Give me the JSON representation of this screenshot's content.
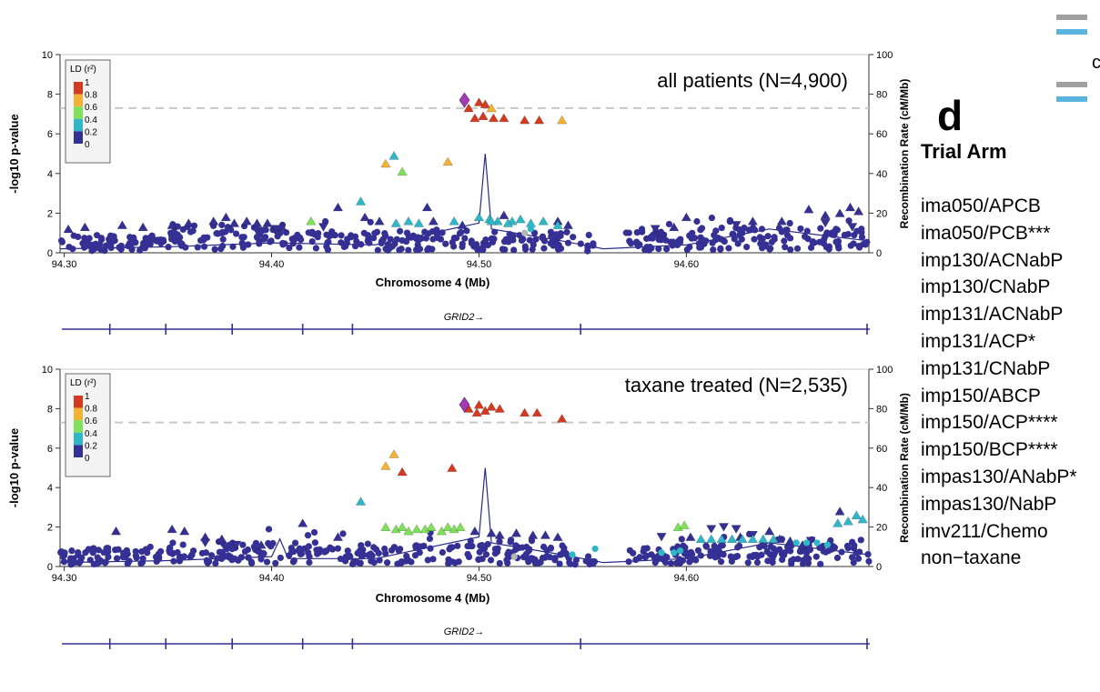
{
  "figure": {
    "panel_letter": "d",
    "side_heading": "Trial Arm",
    "corner_letter": "c",
    "trial_arms": [
      "ima050/APCB",
      "ima050/PCB***",
      "imp130/ACNabP",
      "imp130/CNabP",
      "imp131/ACNabP",
      "imp131/ACP*",
      "imp131/CNabP",
      "imp150/ABCP",
      "imp150/ACP****",
      "imp150/BCP****",
      "impas130/ANabP*",
      "impas130/NabP",
      "imv211/Chemo",
      "non−taxane"
    ],
    "legend_swatch_colors": [
      "#a0a0a0",
      "#5ab4e0",
      "#a0a0a0",
      "#5ab4e0"
    ]
  },
  "chart_data": [
    {
      "type": "scatter",
      "title": "all patients (N=4,900)",
      "xlabel": "Chromosome 4 (Mb)",
      "ylabel": "-log10 p-value",
      "y2label": "Recombination Rate (cM/Mb)",
      "xlim": [
        94.298,
        94.688
      ],
      "ylim": [
        0,
        10
      ],
      "y2lim": [
        0,
        100
      ],
      "xticks": [
        "94.30",
        "94.40",
        "94.50",
        "94.60"
      ],
      "yticks": [
        "0",
        "2",
        "4",
        "6",
        "8",
        "10"
      ],
      "y2ticks": [
        "0",
        "20",
        "40",
        "60",
        "80",
        "100"
      ],
      "significance_line": 7.3,
      "ld_legend": {
        "title": "LD (r²)",
        "labels": [
          "1",
          "0.8",
          "0.6",
          "0.4",
          "0.2",
          "0"
        ],
        "colors": [
          "#d43a1f",
          "#f2b233",
          "#7fe05a",
          "#2fb6c7",
          "#353094"
        ]
      },
      "gene": "GRID2→",
      "gene_exons": [
        94.322,
        94.349,
        94.381,
        94.415,
        94.439,
        94.549,
        94.692
      ],
      "lead_snp": {
        "x": 94.493,
        "y": 7.7,
        "color": "#a33bb5"
      },
      "highlighted": [
        {
          "x": 94.495,
          "y": 7.3,
          "c": "#d43a1f"
        },
        {
          "x": 94.5,
          "y": 7.6,
          "c": "#d43a1f"
        },
        {
          "x": 94.503,
          "y": 7.5,
          "c": "#d43a1f"
        },
        {
          "x": 94.506,
          "y": 7.3,
          "c": "#f2b233"
        },
        {
          "x": 94.498,
          "y": 6.8,
          "c": "#d43a1f"
        },
        {
          "x": 94.502,
          "y": 6.9,
          "c": "#d43a1f"
        },
        {
          "x": 94.507,
          "y": 6.8,
          "c": "#d43a1f"
        },
        {
          "x": 94.512,
          "y": 6.8,
          "c": "#d43a1f"
        },
        {
          "x": 94.522,
          "y": 6.7,
          "c": "#d43a1f"
        },
        {
          "x": 94.529,
          "y": 6.7,
          "c": "#d43a1f"
        },
        {
          "x": 94.54,
          "y": 6.7,
          "c": "#f2b233"
        },
        {
          "x": 94.455,
          "y": 4.5,
          "c": "#f2b233"
        },
        {
          "x": 94.485,
          "y": 4.6,
          "c": "#f2b233"
        },
        {
          "x": 94.459,
          "y": 4.9,
          "c": "#2fb6c7"
        },
        {
          "x": 94.463,
          "y": 4.1,
          "c": "#7fe05a"
        },
        {
          "x": 94.443,
          "y": 2.6,
          "c": "#2fb6c7"
        },
        {
          "x": 94.419,
          "y": 1.6,
          "c": "#7fe05a"
        },
        {
          "x": 94.46,
          "y": 1.5,
          "c": "#2fb6c7"
        },
        {
          "x": 94.466,
          "y": 1.6,
          "c": "#2fb6c7"
        },
        {
          "x": 94.471,
          "y": 1.5,
          "c": "#2fb6c7"
        },
        {
          "x": 94.488,
          "y": 1.6,
          "c": "#2fb6c7"
        },
        {
          "x": 94.5,
          "y": 1.8,
          "c": "#2fb6c7"
        },
        {
          "x": 94.505,
          "y": 1.7,
          "c": "#2fb6c7"
        },
        {
          "x": 94.509,
          "y": 1.6,
          "c": "#2fb6c7"
        },
        {
          "x": 94.516,
          "y": 1.6,
          "c": "#2fb6c7"
        },
        {
          "x": 94.52,
          "y": 1.7,
          "c": "#2fb6c7"
        },
        {
          "x": 94.525,
          "y": 1.5,
          "c": "#2fb6c7"
        },
        {
          "x": 94.531,
          "y": 1.6,
          "c": "#2fb6c7"
        },
        {
          "x": 94.506,
          "y": 1.6,
          "c": "#2fb6c7"
        },
        {
          "x": 94.514,
          "y": 1.5,
          "c": "#2fb6c7"
        },
        {
          "x": 94.538,
          "y": 1.4,
          "c": "#2fb6c7"
        },
        {
          "x": 94.525,
          "y": 1.2,
          "c": "#2fb6c7"
        }
      ],
      "background_points": {
        "color": "#353094",
        "rows": [
          {
            "x0": 94.298,
            "x1": 94.348,
            "y": 0.5,
            "n": 70
          },
          {
            "x0": 94.35,
            "x1": 94.405,
            "y": 0.8,
            "n": 70
          },
          {
            "x0": 94.405,
            "x1": 94.455,
            "y": 0.6,
            "n": 60
          },
          {
            "x0": 94.455,
            "x1": 94.545,
            "y": 0.6,
            "n": 110
          },
          {
            "x0": 94.545,
            "x1": 94.556,
            "y": 0.3,
            "n": 8
          },
          {
            "x0": 94.57,
            "x1": 94.6,
            "y": 0.6,
            "n": 40
          },
          {
            "x0": 94.6,
            "x1": 94.688,
            "y": 0.7,
            "n": 120
          }
        ],
        "triangles": [
          [
            94.302,
            1.2
          ],
          [
            94.31,
            1.3
          ],
          [
            94.328,
            1.4
          ],
          [
            94.338,
            1.3
          ],
          [
            94.352,
            1.4
          ],
          [
            94.36,
            1.5
          ],
          [
            94.372,
            1.6
          ],
          [
            94.378,
            1.8
          ],
          [
            94.382,
            1.5
          ],
          [
            94.388,
            1.6
          ],
          [
            94.393,
            1.5
          ],
          [
            94.398,
            1.5
          ],
          [
            94.405,
            1.3
          ],
          [
            94.432,
            2.3
          ],
          [
            94.445,
            1.8
          ],
          [
            94.452,
            1.6
          ],
          [
            94.475,
            2.3
          ],
          [
            94.478,
            1.6
          ],
          [
            94.492,
            1.4
          ],
          [
            94.512,
            1.9
          ],
          [
            94.538,
            1.6
          ],
          [
            94.543,
            1.4
          ],
          [
            94.588,
            1.0
          ],
          [
            94.594,
            1.3
          ],
          [
            94.6,
            1.8
          ],
          [
            94.632,
            1.6
          ],
          [
            94.646,
            1.6
          ],
          [
            94.659,
            2.2
          ],
          [
            94.667,
            1.9
          ],
          [
            94.674,
            2.0
          ],
          [
            94.679,
            2.3
          ],
          [
            94.683,
            2.1
          ]
        ],
        "down_triangles": [
          [
            94.402,
            1.2
          ],
          [
            94.425,
            1.3
          ],
          [
            94.585,
            1.2
          ],
          [
            94.624,
            1.4
          ],
          [
            94.667,
            1.5
          ],
          [
            94.68,
            1.3
          ]
        ],
        "grey_points": [
          [
            94.522,
            1.0
          ]
        ]
      },
      "recomb_line": [
        [
          94.298,
          0.2
        ],
        [
          94.35,
          0.3
        ],
        [
          94.4,
          0.5
        ],
        [
          94.45,
          0.4
        ],
        [
          94.5,
          1.5
        ],
        [
          94.503,
          5
        ],
        [
          94.506,
          1.2
        ],
        [
          94.54,
          0.6
        ],
        [
          94.56,
          0.2
        ],
        [
          94.6,
          0.4
        ],
        [
          94.64,
          1.2
        ],
        [
          94.688,
          0.6
        ]
      ]
    },
    {
      "type": "scatter",
      "title": "taxane treated (N=2,535)",
      "xlabel": "Chromosome 4 (Mb)",
      "ylabel": "-log10 p-value",
      "y2label": "Recombination Rate (cM/Mb)",
      "xlim": [
        94.298,
        94.688
      ],
      "ylim": [
        0,
        10
      ],
      "y2lim": [
        0,
        100
      ],
      "xticks": [
        "94.30",
        "94.40",
        "94.50",
        "94.60"
      ],
      "yticks": [
        "0",
        "2",
        "4",
        "6",
        "8",
        "10"
      ],
      "y2ticks": [
        "0",
        "20",
        "40",
        "60",
        "80",
        "100"
      ],
      "significance_line": 7.3,
      "ld_legend": {
        "title": "LD (r²)",
        "labels": [
          "1",
          "0.8",
          "0.6",
          "0.4",
          "0.2",
          "0"
        ],
        "colors": [
          "#d43a1f",
          "#f2b233",
          "#7fe05a",
          "#2fb6c7",
          "#353094"
        ]
      },
      "gene": "GRID2→",
      "gene_exons": [
        94.322,
        94.349,
        94.381,
        94.415,
        94.439,
        94.549,
        94.692
      ],
      "lead_snp": {
        "x": 94.493,
        "y": 8.2,
        "color": "#a33bb5"
      },
      "highlighted": [
        {
          "x": 94.495,
          "y": 8.0,
          "c": "#d43a1f"
        },
        {
          "x": 94.5,
          "y": 8.2,
          "c": "#d43a1f"
        },
        {
          "x": 94.503,
          "y": 7.9,
          "c": "#d43a1f"
        },
        {
          "x": 94.506,
          "y": 8.1,
          "c": "#d43a1f"
        },
        {
          "x": 94.499,
          "y": 7.8,
          "c": "#d43a1f"
        },
        {
          "x": 94.51,
          "y": 8.0,
          "c": "#d43a1f"
        },
        {
          "x": 94.522,
          "y": 7.8,
          "c": "#d43a1f"
        },
        {
          "x": 94.528,
          "y": 7.8,
          "c": "#d43a1f"
        },
        {
          "x": 94.54,
          "y": 7.5,
          "c": "#d43a1f"
        },
        {
          "x": 94.455,
          "y": 5.1,
          "c": "#f2b233"
        },
        {
          "x": 94.459,
          "y": 5.7,
          "c": "#f2b233"
        },
        {
          "x": 94.463,
          "y": 4.8,
          "c": "#d43a1f"
        },
        {
          "x": 94.487,
          "y": 5.0,
          "c": "#d43a1f"
        },
        {
          "x": 94.443,
          "y": 3.3,
          "c": "#2fb6c7"
        },
        {
          "x": 94.455,
          "y": 2.0,
          "c": "#7fe05a"
        },
        {
          "x": 94.46,
          "y": 1.9,
          "c": "#7fe05a"
        },
        {
          "x": 94.463,
          "y": 2.0,
          "c": "#7fe05a"
        },
        {
          "x": 94.466,
          "y": 1.8,
          "c": "#7fe05a"
        },
        {
          "x": 94.47,
          "y": 1.9,
          "c": "#7fe05a"
        },
        {
          "x": 94.474,
          "y": 1.9,
          "c": "#7fe05a"
        },
        {
          "x": 94.477,
          "y": 2.0,
          "c": "#7fe05a"
        },
        {
          "x": 94.482,
          "y": 1.8,
          "c": "#7fe05a"
        },
        {
          "x": 94.485,
          "y": 2.0,
          "c": "#7fe05a"
        },
        {
          "x": 94.488,
          "y": 1.9,
          "c": "#7fe05a"
        },
        {
          "x": 94.491,
          "y": 2.0,
          "c": "#7fe05a"
        },
        {
          "x": 94.596,
          "y": 2.0,
          "c": "#7fe05a"
        },
        {
          "x": 94.599,
          "y": 2.1,
          "c": "#7fe05a"
        },
        {
          "x": 94.678,
          "y": 2.3,
          "c": "#2fb6c7"
        },
        {
          "x": 94.682,
          "y": 2.6,
          "c": "#2fb6c7"
        },
        {
          "x": 94.685,
          "y": 2.4,
          "c": "#2fb6c7"
        },
        {
          "x": 94.673,
          "y": 2.2,
          "c": "#2fb6c7"
        },
        {
          "x": 94.556,
          "y": 0.9,
          "c": "#2fb6c7"
        },
        {
          "x": 94.545,
          "y": 0.6,
          "c": "#2fb6c7"
        },
        {
          "x": 94.597,
          "y": 0.8,
          "c": "#2fb6c7"
        },
        {
          "x": 94.588,
          "y": 0.7,
          "c": "#2fb6c7"
        },
        {
          "x": 94.594,
          "y": 0.7,
          "c": "#2fb6c7"
        },
        {
          "x": 94.607,
          "y": 1.4,
          "c": "#2fb6c7"
        },
        {
          "x": 94.612,
          "y": 1.4,
          "c": "#2fb6c7"
        },
        {
          "x": 94.617,
          "y": 1.4,
          "c": "#2fb6c7"
        },
        {
          "x": 94.622,
          "y": 1.4,
          "c": "#2fb6c7"
        },
        {
          "x": 94.627,
          "y": 1.4,
          "c": "#2fb6c7"
        },
        {
          "x": 94.632,
          "y": 1.4,
          "c": "#2fb6c7"
        },
        {
          "x": 94.637,
          "y": 1.4,
          "c": "#2fb6c7"
        },
        {
          "x": 94.642,
          "y": 1.4,
          "c": "#2fb6c7"
        },
        {
          "x": 94.653,
          "y": 1.2,
          "c": "#2fb6c7"
        },
        {
          "x": 94.658,
          "y": 1.2,
          "c": "#2fb6c7"
        },
        {
          "x": 94.663,
          "y": 1.2,
          "c": "#2fb6c7"
        },
        {
          "x": 94.668,
          "y": 1.1,
          "c": "#2fb6c7"
        }
      ],
      "background_points": {
        "color": "#353094",
        "rows": [
          {
            "x0": 94.298,
            "x1": 94.348,
            "y": 0.5,
            "n": 70
          },
          {
            "x0": 94.35,
            "x1": 94.405,
            "y": 0.7,
            "n": 75
          },
          {
            "x0": 94.405,
            "x1": 94.455,
            "y": 0.6,
            "n": 60
          },
          {
            "x0": 94.455,
            "x1": 94.545,
            "y": 0.6,
            "n": 110
          },
          {
            "x0": 94.545,
            "x1": 94.556,
            "y": 0.3,
            "n": 8
          },
          {
            "x0": 94.57,
            "x1": 94.6,
            "y": 0.6,
            "n": 40
          },
          {
            "x0": 94.6,
            "x1": 94.688,
            "y": 0.6,
            "n": 110
          }
        ],
        "triangles": [
          [
            94.325,
            1.8
          ],
          [
            94.352,
            1.9
          ],
          [
            94.358,
            1.8
          ],
          [
            94.368,
            1.5
          ],
          [
            94.376,
            1.4
          ],
          [
            94.395,
            1.1
          ],
          [
            94.415,
            2.2
          ],
          [
            94.432,
            1.5
          ],
          [
            94.498,
            1.8
          ],
          [
            94.506,
            1.7
          ],
          [
            94.51,
            1.6
          ],
          [
            94.518,
            1.7
          ],
          [
            94.526,
            1.6
          ],
          [
            94.532,
            1.6
          ],
          [
            94.538,
            1.5
          ],
          [
            94.602,
            1.5
          ],
          [
            94.626,
            1.5
          ],
          [
            94.64,
            1.8
          ],
          [
            94.645,
            1.4
          ],
          [
            94.65,
            1.3
          ],
          [
            94.656,
            1.1
          ],
          [
            94.674,
            2.8
          ]
        ],
        "down_triangles": [
          [
            94.368,
            1.2
          ],
          [
            94.383,
            1.1
          ],
          [
            94.588,
            1.5
          ],
          [
            94.612,
            1.9
          ],
          [
            94.618,
            2.0
          ],
          [
            94.624,
            1.9
          ],
          [
            94.632,
            1.6
          ],
          [
            94.66,
            1.3
          ]
        ],
        "grey_points": [
          [
            94.517,
            0.5
          ]
        ]
      },
      "recomb_line": [
        [
          94.298,
          0.2
        ],
        [
          94.35,
          0.3
        ],
        [
          94.4,
          0.5
        ],
        [
          94.404,
          1.4
        ],
        [
          94.408,
          0.4
        ],
        [
          94.45,
          0.4
        ],
        [
          94.5,
          1.5
        ],
        [
          94.503,
          5
        ],
        [
          94.506,
          1.2
        ],
        [
          94.54,
          0.6
        ],
        [
          94.56,
          0.2
        ],
        [
          94.6,
          0.4
        ],
        [
          94.64,
          1.2
        ],
        [
          94.688,
          0.6
        ]
      ]
    }
  ]
}
